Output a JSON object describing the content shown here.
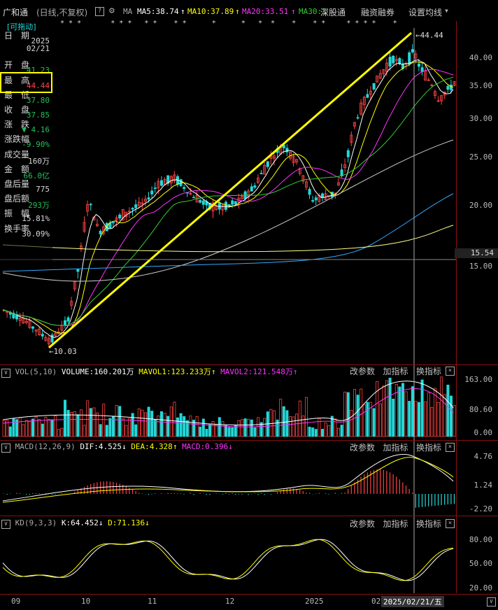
{
  "top": {
    "stock": "广和通",
    "period": "(日线,不复权)",
    "help": "?",
    "ma_label": "MA",
    "ma5": "MA5:38.74",
    "ma10": "MA10:37.89",
    "ma20": "MA20:33.51",
    "ma30": "MA30:3",
    "link1": "深股通",
    "link2": "融资融券",
    "link3": "设置均线"
  },
  "markers": "* * *       * * *   * *    * *      *      *   *  *    *    * *     * * * *    *",
  "info": {
    "drag_tag": "[可拖动]",
    "rows": [
      {
        "label": "日　期",
        "value": "2025"
      },
      {
        "label": "",
        "value": "02/21"
      },
      {
        "label": "开　盘",
        "value": "41.23"
      },
      {
        "label": "最　高",
        "value": "44.44"
      },
      {
        "label": "最　低",
        "value": "37.80"
      },
      {
        "label": "收　盘",
        "value": "37.85"
      },
      {
        "label": "涨　跌",
        "value": "▼ 4.16"
      },
      {
        "label": "涨跌幅",
        "value": "-9.90%"
      },
      {
        "label": "成交量",
        "value": "160万"
      },
      {
        "label": "金　额",
        "value": "66.0亿"
      },
      {
        "label": "盘后量",
        "value": "775"
      },
      {
        "label": "盘后额",
        "value": "293万"
      },
      {
        "label": "振　幅",
        "value": "15.81%"
      },
      {
        "label": "换手率",
        "value": "30.09%"
      }
    ]
  },
  "main_axis": [
    "40.00",
    "35.00",
    "30.00",
    "25.00",
    "20.00",
    "15.00"
  ],
  "current_price": "15.54",
  "high_marker": "44.44",
  "low_marker": "10.03",
  "vol": {
    "title": "VOL(5,10)",
    "volume": "VOLUME:160.201万",
    "mavol1": "MAVOL1:123.233万",
    "mavol2": "MAVOL2:121.548万",
    "axis": [
      "163.00",
      "80.60",
      "0.00"
    ]
  },
  "macd": {
    "title": "MACD(12,26,9)",
    "dif": "DIF:4.525",
    "dea": "DEA:4.328",
    "macd": "MACD:0.396",
    "axis": [
      "4.76",
      "1.24",
      "-2.20"
    ]
  },
  "kd": {
    "title": "KD(9,3,3)",
    "k": "K:64.452",
    "d": "D:71.136",
    "axis": [
      "80.00",
      "50.00",
      "20.00"
    ]
  },
  "panel_buttons": {
    "param": "改参数",
    "add": "加指标",
    "swap": "换指标",
    "close": "×"
  },
  "x_axis": [
    "09",
    "10",
    "11",
    "12",
    "2025",
    "02"
  ],
  "cursor_date": "2025/02/21/五",
  "colors": {
    "up": "#ff4444",
    "down": "#22d8d8",
    "ma5": "#ffffff",
    "ma10": "#ffff00",
    "ma20": "#ff33ff",
    "ma30": "#33cc33",
    "accent": "#ffff00"
  }
}
